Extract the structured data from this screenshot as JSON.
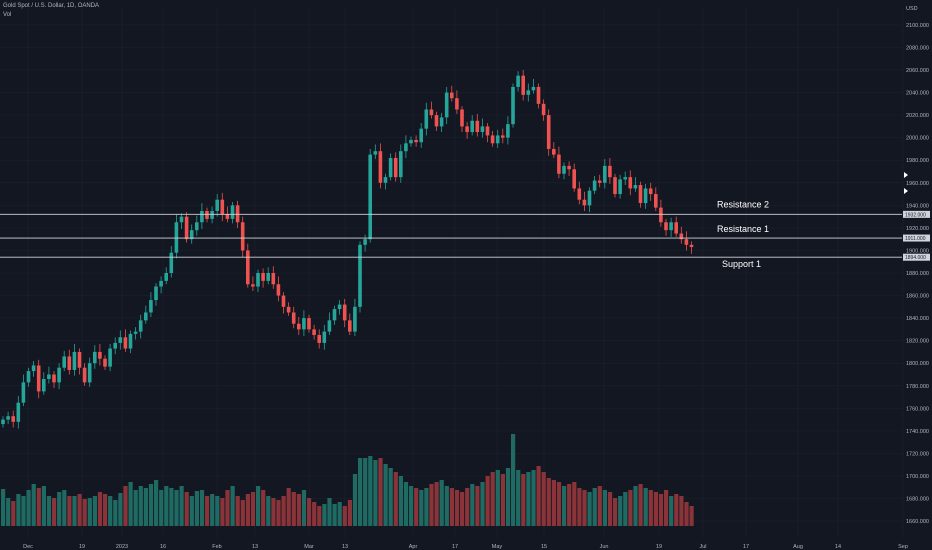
{
  "header": {
    "symbol_line": "Gold Spot / U.S. Dollar, 1D, OANDA",
    "volume_label": "Vol"
  },
  "currency_label": "USD",
  "colors": {
    "background": "#131722",
    "up": "#26a69a",
    "down": "#ef5350",
    "up_volume": "#1f6b63",
    "down_volume": "#8a3338",
    "level_line": "#d1d4dc",
    "axis_text": "#b2b5be",
    "grid": "#1c2030"
  },
  "chart_data": {
    "type": "candlestick",
    "title": "Gold Spot / U.S. Dollar, 1D, OANDA",
    "ylabel": "USD",
    "ylim": [
      1645,
      2115
    ],
    "y_ticks": [
      "2100.000",
      "2080.000",
      "2060.000",
      "2040.000",
      "2020.000",
      "2000.000",
      "1980.000",
      "1960.000",
      "1940.000",
      "1920.000",
      "1900.000",
      "1880.000",
      "1860.000",
      "1840.000",
      "1820.000",
      "1800.000",
      "1780.000",
      "1760.000",
      "1740.000",
      "1720.000",
      "1700.000",
      "1680.000",
      "1660.000"
    ],
    "x_ticks": [
      "Dec",
      "19",
      "2023",
      "16",
      "Feb",
      "13",
      "Mar",
      "13",
      "Apr",
      "17",
      "May",
      "15",
      "Jun",
      "19",
      "Jul",
      "17",
      "Aug",
      "14",
      "Sep"
    ],
    "grid": true,
    "levels": [
      {
        "name": "Resistance 2",
        "price": 1932
      },
      {
        "name": "Resistance 1",
        "price": 1911
      },
      {
        "name": "Support 1",
        "price": 1894
      }
    ],
    "close_series": [
      1750,
      1753,
      1748,
      1765,
      1783,
      1793,
      1798,
      1775,
      1786,
      1790,
      1783,
      1796,
      1806,
      1794,
      1810,
      1796,
      1783,
      1800,
      1810,
      1804,
      1797,
      1813,
      1818,
      1823,
      1813,
      1826,
      1828,
      1838,
      1845,
      1856,
      1868,
      1873,
      1880,
      1898,
      1925,
      1930,
      1910,
      1918,
      1925,
      1935,
      1928,
      1935,
      1945,
      1932,
      1928,
      1940,
      1925,
      1900,
      1870,
      1868,
      1880,
      1873,
      1880,
      1870,
      1860,
      1850,
      1845,
      1835,
      1830,
      1840,
      1830,
      1825,
      1818,
      1828,
      1838,
      1848,
      1852,
      1838,
      1828,
      1850,
      1905,
      1910,
      1985,
      1988,
      1960,
      1965,
      1982,
      1965,
      1988,
      1995,
      1998,
      1996,
      2008,
      2025,
      2020,
      2010,
      2018,
      2040,
      2035,
      2025,
      2010,
      2005,
      2015,
      2005,
      2010,
      2002,
      1995,
      2002,
      2000,
      2012,
      2045,
      2055,
      2038,
      2042,
      2045,
      2030,
      2020,
      1990,
      1985,
      1968,
      1975,
      1972,
      1955,
      1945,
      1940,
      1953,
      1962,
      1960,
      1975,
      1965,
      1950,
      1963,
      1965,
      1955,
      1958,
      1942,
      1955,
      1950,
      1938,
      1925,
      1918,
      1925,
      1915,
      1910,
      1905,
      1903
    ],
    "volume_series": [
      37,
      28,
      25,
      32,
      30,
      36,
      42,
      38,
      40,
      30,
      28,
      34,
      36,
      30,
      30,
      32,
      27,
      28,
      30,
      34,
      32,
      30,
      26,
      33,
      40,
      44,
      36,
      40,
      38,
      42,
      46,
      36,
      40,
      38,
      36,
      40,
      34,
      30,
      35,
      36,
      30,
      32,
      30,
      28,
      36,
      40,
      30,
      26,
      32,
      34,
      40,
      36,
      30,
      28,
      26,
      30,
      38,
      34,
      32,
      36,
      28,
      24,
      20,
      22,
      28,
      22,
      24,
      20,
      26,
      52,
      68,
      68,
      70,
      66,
      68,
      62,
      58,
      54,
      50,
      44,
      40,
      38,
      36,
      38,
      42,
      44,
      46,
      40,
      38,
      36,
      34,
      38,
      42,
      40,
      44,
      50,
      54,
      56,
      52,
      58,
      92,
      56,
      52,
      54,
      56,
      60,
      54,
      48,
      46,
      44,
      40,
      42,
      44,
      38,
      36,
      34,
      38,
      40,
      36,
      34,
      28,
      30,
      34,
      36,
      40,
      42,
      38,
      36,
      34,
      32,
      36,
      30,
      32,
      30,
      24,
      20
    ]
  },
  "level_labels": {
    "r2": "Resistance 2",
    "r1": "Resistance 1",
    "s1": "Support 1"
  }
}
